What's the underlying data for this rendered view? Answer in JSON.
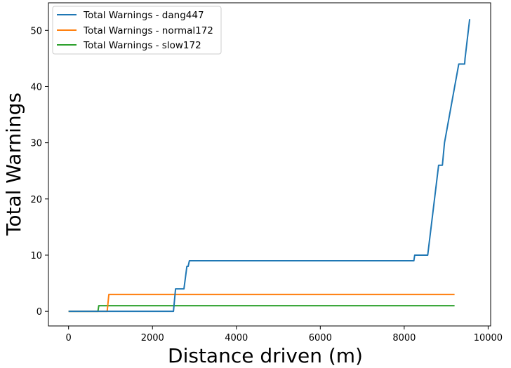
{
  "chart_data": {
    "type": "line",
    "title": "",
    "xlabel": "Distance driven (m)",
    "ylabel": "Total Warnings",
    "xlim": [
      -480,
      10060
    ],
    "ylim": [
      -2.6,
      54.9
    ],
    "xticks": [
      0,
      2000,
      4000,
      6000,
      8000,
      10000
    ],
    "yticks": [
      0,
      10,
      20,
      30,
      40,
      50
    ],
    "grid": false,
    "legend_position": "top-left",
    "series": [
      {
        "name": "Total Warnings - dang447",
        "color": "#1f77b4",
        "x": [
          0,
          2500,
          2550,
          2700,
          2750,
          2820,
          2850,
          2880,
          2900,
          8230,
          8250,
          8530,
          8560,
          8820,
          8850,
          8910,
          8960,
          9300,
          9320,
          9440,
          9450,
          9560
        ],
        "y": [
          0,
          0,
          4,
          4,
          4,
          8,
          8,
          9,
          9,
          9,
          10,
          10,
          10,
          26,
          26,
          26,
          30,
          44,
          44,
          44,
          45,
          52
        ]
      },
      {
        "name": "Total Warnings - normal172",
        "color": "#ff7f0e",
        "x": [
          0,
          920,
          960,
          9200
        ],
        "y": [
          0,
          0,
          3,
          3
        ]
      },
      {
        "name": "Total Warnings - slow172",
        "color": "#2ca02c",
        "x": [
          0,
          700,
          720,
          9200
        ],
        "y": [
          0,
          0,
          1,
          1
        ]
      }
    ]
  }
}
